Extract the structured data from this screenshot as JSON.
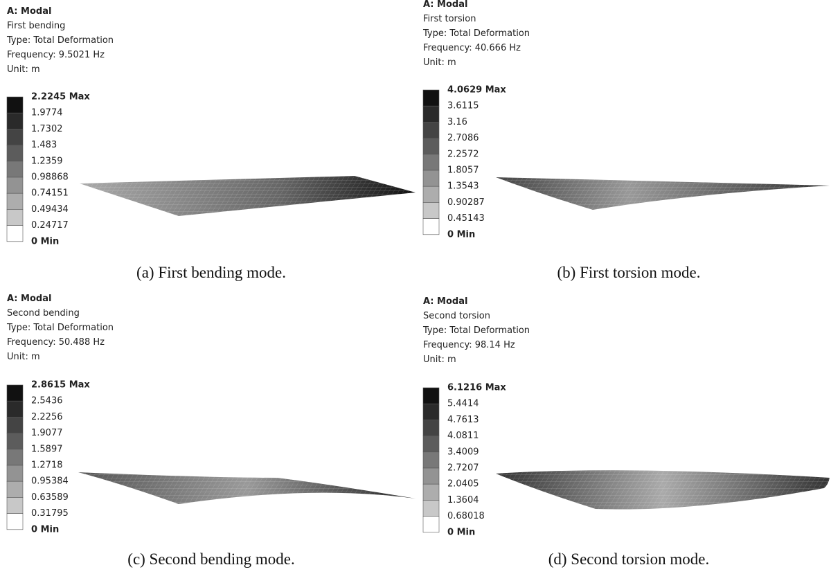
{
  "panels": [
    {
      "header": [
        "A: Modal",
        "First bending",
        "Type: Total Deformation",
        "Frequency: 9.5021 Hz",
        "Unit: m"
      ],
      "legend": [
        "2.2245 Max",
        "1.9774",
        "1.7302",
        "1.483",
        "1.2359",
        "0.98868",
        "0.74151",
        "0.49434",
        "0.24717",
        "0 Min"
      ],
      "caption": "(a) First bending mode."
    },
    {
      "header": [
        "A: Modal",
        "First torsion",
        "Type: Total Deformation",
        "Frequency: 40.666 Hz",
        "Unit: m"
      ],
      "legend": [
        "4.0629 Max",
        "3.6115",
        "3.16",
        "2.7086",
        "2.2572",
        "1.8057",
        "1.3543",
        "0.90287",
        "0.45143",
        "0 Min"
      ],
      "caption": "(b) First torsion mode."
    },
    {
      "header": [
        "A: Modal",
        "Second bending",
        "Type: Total Deformation",
        "Frequency: 50.488 Hz",
        "Unit: m"
      ],
      "legend": [
        "2.8615 Max",
        "2.5436",
        "2.2256",
        "1.9077",
        "1.5897",
        "1.2718",
        "0.95384",
        "0.63589",
        "0.31795",
        "0 Min"
      ],
      "caption": "(c) Second bending mode."
    },
    {
      "header": [
        "A: Modal",
        "Second torsion",
        "Type: Total Deformation",
        "Frequency: 98.14 Hz",
        "Unit: m"
      ],
      "legend": [
        "6.1216 Max",
        "5.4414",
        "4.7613",
        "4.0811",
        "3.4009",
        "2.7207",
        "2.0405",
        "1.3604",
        "0.68018",
        "0 Min"
      ],
      "caption": "(d) Second torsion mode."
    }
  ]
}
